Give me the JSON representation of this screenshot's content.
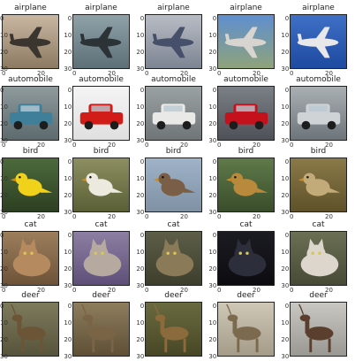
{
  "rows": [
    {
      "label": "airplane",
      "cells": [
        {
          "label": "airplane",
          "thumb": "airplane-ground",
          "bg": [
            "#c9b7a2",
            "#8c7a62"
          ],
          "obj": "#3b3530"
        },
        {
          "label": "airplane",
          "thumb": "airplane-jet-topdown",
          "bg": [
            "#8fa2a8",
            "#5d6f77"
          ],
          "obj": "#2c3337"
        },
        {
          "label": "airplane",
          "thumb": "airplane-closeup",
          "bg": [
            "#b8bcc4",
            "#7d8593"
          ],
          "obj": "#47506a"
        },
        {
          "label": "airplane",
          "thumb": "airplane-on-runway",
          "bg": [
            "#5f8fcf",
            "#8fa37a"
          ],
          "obj": "#d8d4d0"
        },
        {
          "label": "airplane",
          "thumb": "airplane-in-sky",
          "bg": [
            "#3f6fc6",
            "#1e4aa1"
          ],
          "obj": "#e8e8ea"
        }
      ]
    },
    {
      "label": "automobile",
      "cells": [
        {
          "label": "automobile",
          "thumb": "blue-car",
          "bg": [
            "#8e9a9c",
            "#5d6a6e"
          ],
          "obj": "#3f7f9a"
        },
        {
          "label": "automobile",
          "thumb": "red-sports-car",
          "bg": [
            "#f4f4f4",
            "#e0e0e0"
          ],
          "obj": "#d11c18"
        },
        {
          "label": "automobile",
          "thumb": "white-police-car",
          "bg": [
            "#9aa1a3",
            "#707678"
          ],
          "obj": "#e9e9e7"
        },
        {
          "label": "automobile",
          "thumb": "red-pickup",
          "bg": [
            "#7b7f86",
            "#4e5157"
          ],
          "obj": "#c5111b"
        },
        {
          "label": "automobile",
          "thumb": "silver-van",
          "bg": [
            "#a9afb3",
            "#6e757a"
          ],
          "obj": "#cfd3d6"
        }
      ]
    },
    {
      "label": "bird",
      "cells": [
        {
          "label": "bird",
          "thumb": "yellow-chick",
          "bg": [
            "#4c6a3c",
            "#2d3f22"
          ],
          "obj": "#f0d21a"
        },
        {
          "label": "bird",
          "thumb": "wagtail",
          "bg": [
            "#8d8f60",
            "#5a5f36"
          ],
          "obj": "#eceadf"
        },
        {
          "label": "bird",
          "thumb": "sparrow-on-branch",
          "bg": [
            "#9fb3c9",
            "#7f91a3"
          ],
          "obj": "#7a5e45"
        },
        {
          "label": "bird",
          "thumb": "bird-on-feeder",
          "bg": [
            "#5f7a4a",
            "#3a4d2b"
          ],
          "obj": "#b98a3b"
        },
        {
          "label": "bird",
          "thumb": "thrush",
          "bg": [
            "#8a7a49",
            "#5f5129"
          ],
          "obj": "#c2ab78"
        }
      ]
    },
    {
      "label": "cat",
      "cells": [
        {
          "label": "cat",
          "thumb": "tabby-lying",
          "bg": [
            "#9c7e5c",
            "#6d5338"
          ],
          "obj": "#b48a5e"
        },
        {
          "label": "cat",
          "thumb": "grey-cat-blanket",
          "bg": [
            "#8d7fa3",
            "#5d4f78"
          ],
          "obj": "#b6a9a0"
        },
        {
          "label": "cat",
          "thumb": "tabby-face",
          "bg": [
            "#5d5e48",
            "#3d3e2c"
          ],
          "obj": "#8a7a58"
        },
        {
          "label": "cat",
          "thumb": "black-cat",
          "bg": [
            "#1b1b22",
            "#0c0c10"
          ],
          "obj": "#2c2f3b"
        },
        {
          "label": "cat",
          "thumb": "fluffy-cat",
          "bg": [
            "#6b6f54",
            "#474b35"
          ],
          "obj": "#dcd6cc"
        }
      ]
    },
    {
      "label": "deer",
      "cells": [
        {
          "label": "deer",
          "thumb": "deer-1",
          "bg": [
            "#7d7a5c",
            "#57543c"
          ],
          "obj": "#6b5536"
        },
        {
          "label": "deer",
          "thumb": "deer-2",
          "bg": [
            "#8e7d5d",
            "#5e4f36"
          ],
          "obj": "#7a6446"
        },
        {
          "label": "deer",
          "thumb": "deer-3",
          "bg": [
            "#6a6a40",
            "#474726"
          ],
          "obj": "#8b6a3c"
        },
        {
          "label": "deer",
          "thumb": "deer-4",
          "bg": [
            "#cfc8b7",
            "#a49b88"
          ],
          "obj": "#7b6a4e"
        },
        {
          "label": "deer",
          "thumb": "deer-5",
          "bg": [
            "#c9c7c2",
            "#9a9893"
          ],
          "obj": "#5b3f2e"
        }
      ]
    }
  ],
  "axis": {
    "y_ticks_top": [
      "0",
      "10",
      "20",
      "30"
    ],
    "x_ticks": [
      "0",
      "20"
    ]
  }
}
